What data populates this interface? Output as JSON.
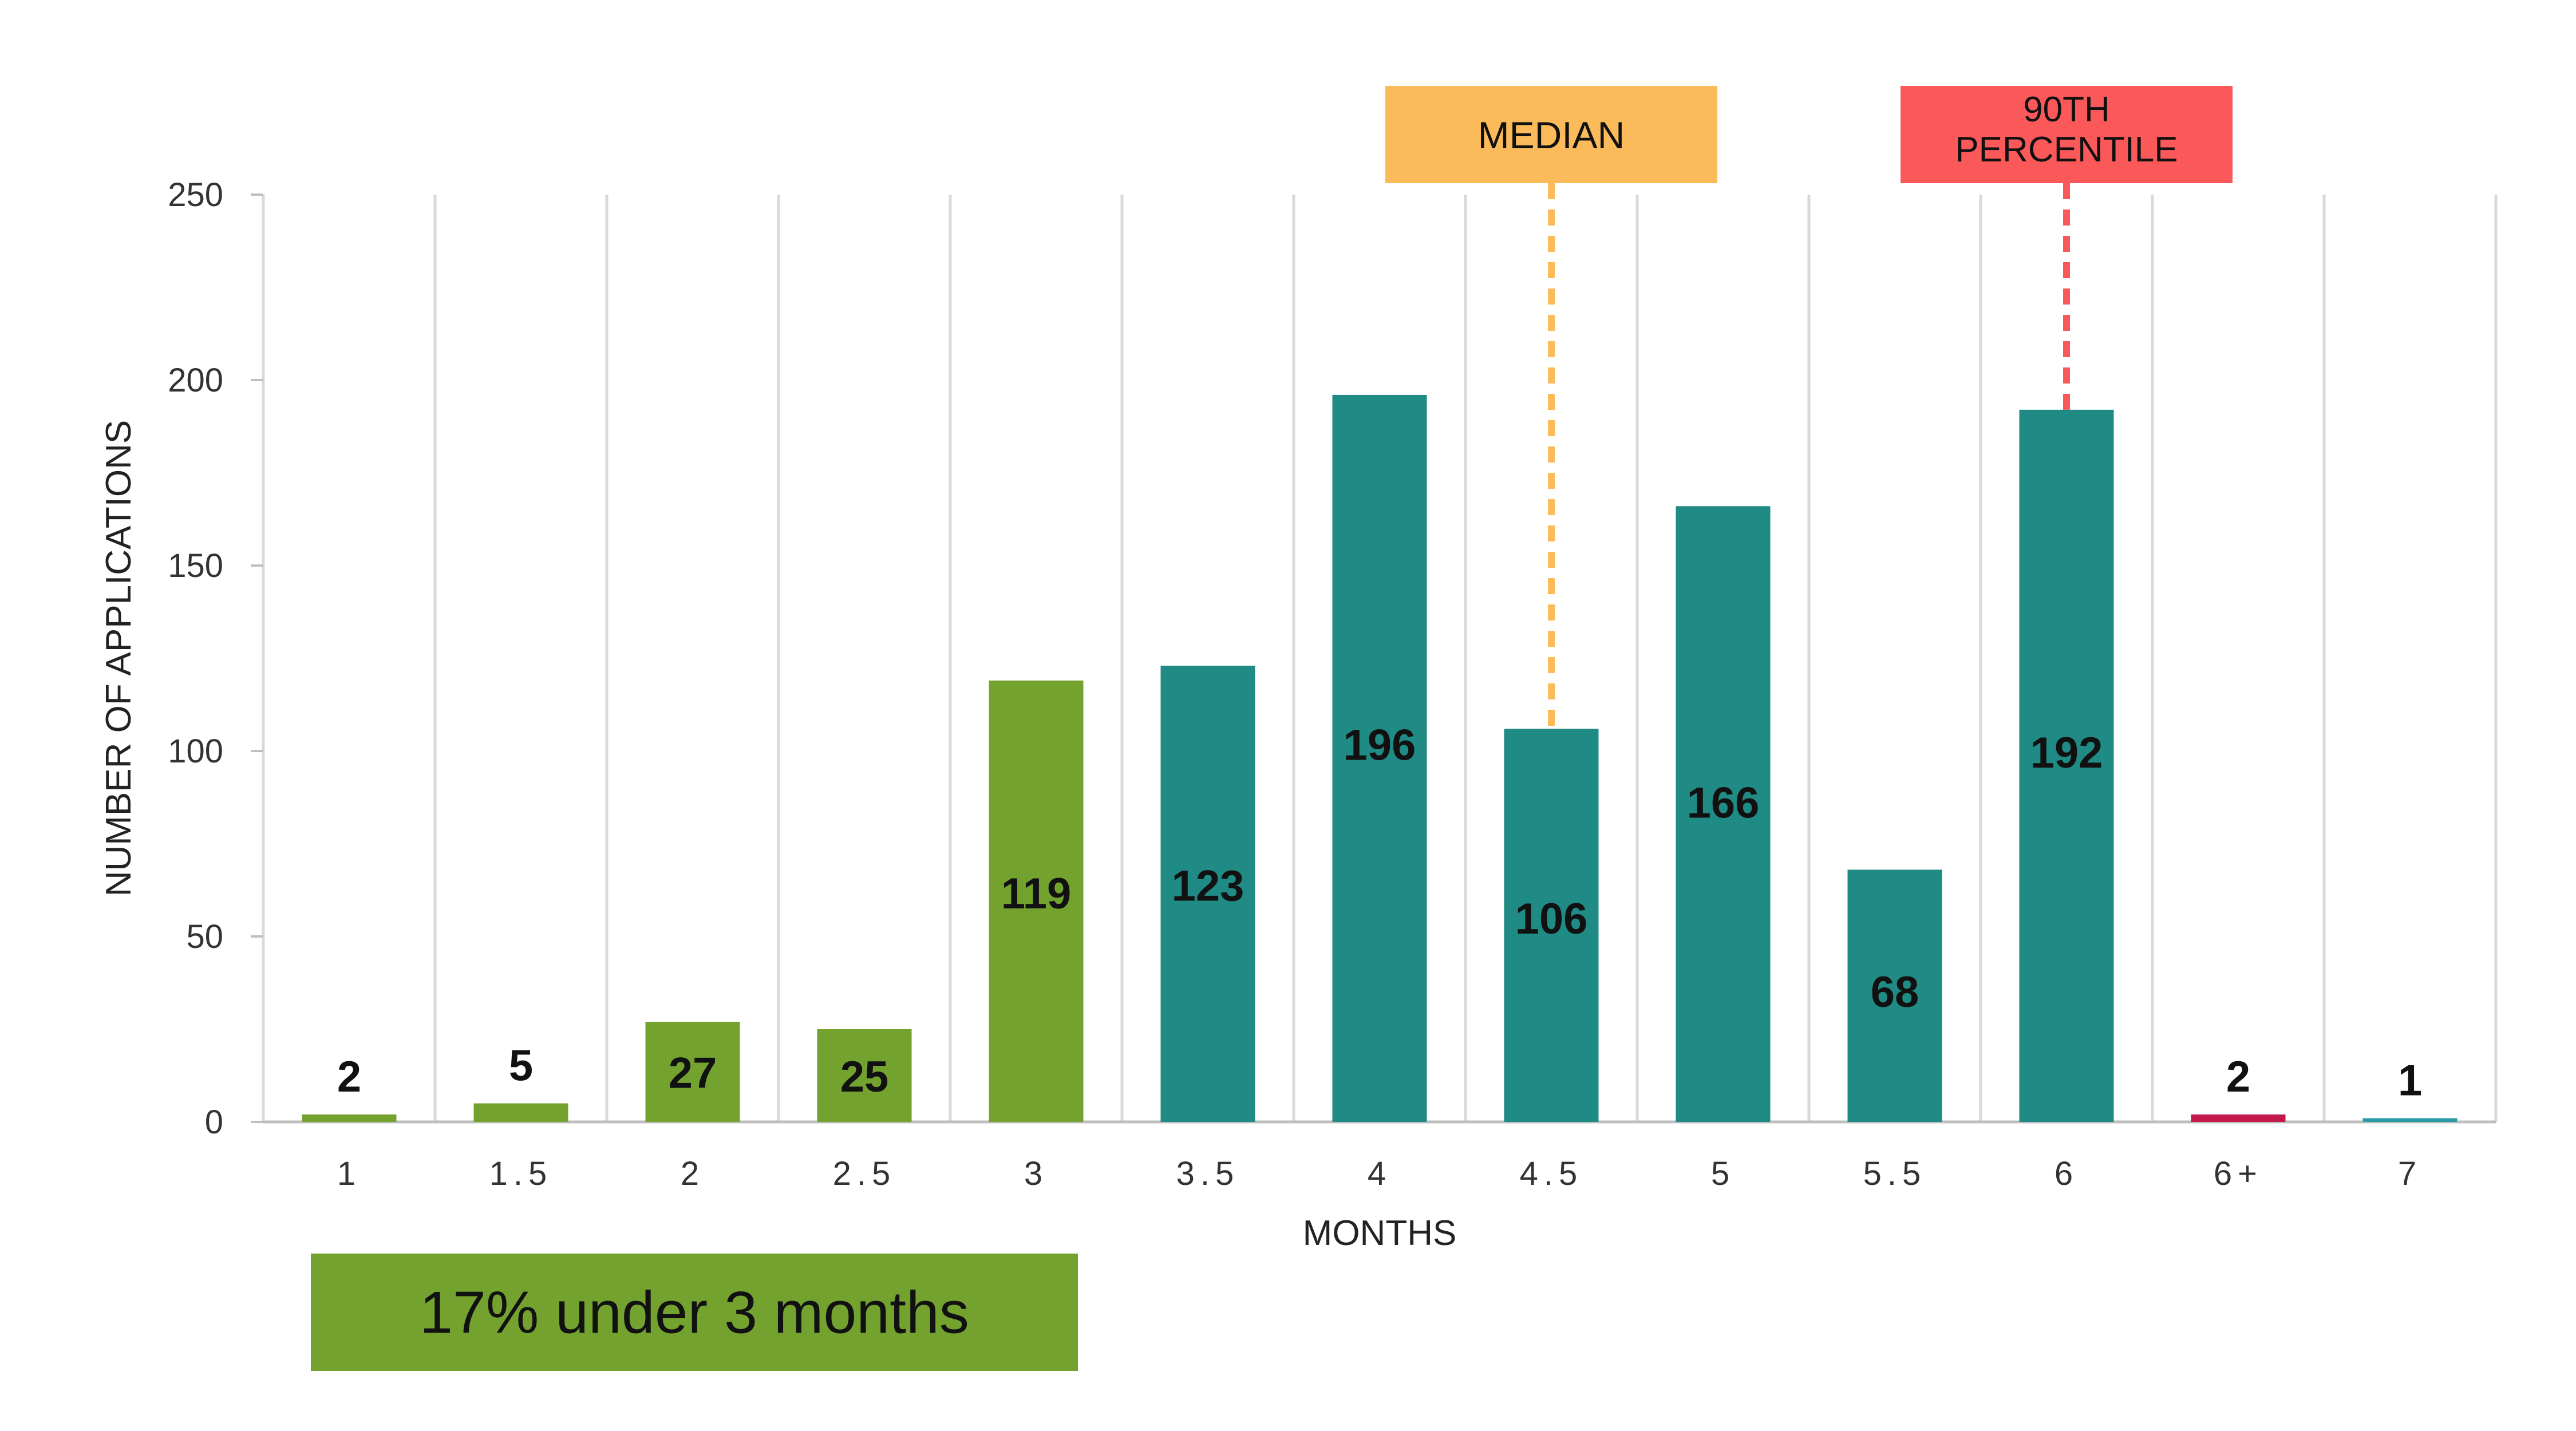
{
  "chart_data": {
    "type": "bar",
    "categories": [
      "1",
      "1.5",
      "2",
      "2.5",
      "3",
      "3.5",
      "4",
      "4.5",
      "5",
      "5.5",
      "6",
      "6+",
      "7"
    ],
    "x_tick_display": [
      "1",
      "1.5",
      "2",
      "2.5",
      "3",
      "3.5",
      "4",
      "4.5",
      "5",
      "5.5",
      "6",
      "6+",
      "7"
    ],
    "values": [
      2,
      5,
      27,
      25,
      119,
      123,
      196,
      106,
      166,
      68,
      192,
      2,
      1
    ],
    "data_labels": [
      "2",
      "5",
      "27",
      "25",
      "119",
      "123",
      "196",
      "106",
      "166",
      "68",
      "192",
      "2",
      "1"
    ],
    "label_inside": [
      false,
      false,
      true,
      true,
      true,
      true,
      true,
      true,
      true,
      true,
      true,
      false,
      false
    ],
    "bar_colors": [
      "#74a22f",
      "#74a22f",
      "#74a22f",
      "#74a22f",
      "#74a22f",
      "#208a85",
      "#208a85",
      "#208a85",
      "#208a85",
      "#208a85",
      "#208a85",
      "#c0194a",
      "#2a9aa8"
    ],
    "xlabel": "MONTHS",
    "ylabel": "NUMBER OF APPLICATIONS",
    "ylim": [
      0,
      250
    ],
    "yticks": [
      0,
      50,
      100,
      150,
      200,
      250
    ],
    "grid": "vertical",
    "annotations": [
      {
        "text": "MEDIAN",
        "category": "4.5",
        "color": "#fbbb5a"
      },
      {
        "text": "90TH\nPERCENTILE",
        "category": "6",
        "color": "#fb585a"
      }
    ],
    "summary": {
      "text": "17% under 3 months",
      "color": "#74a22f"
    }
  }
}
